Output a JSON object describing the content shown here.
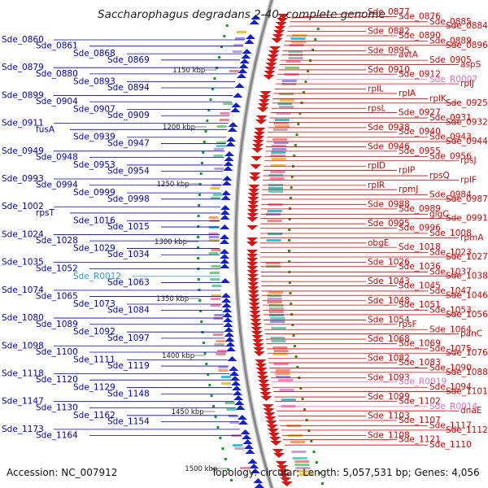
{
  "title": "Saccharophagus degradans 2-40, complete genome",
  "footer": {
    "accession": "Accession: NC_007912",
    "topology": "Topology: circular; Length: 5,057,531 bp; Genes: 4,056"
  },
  "colors": {
    "left": "#0000cc",
    "right": "#e00000",
    "rna_left": "#22a0cc",
    "rna_right": "#e070c0",
    "track": "#888888"
  },
  "kbp_markers": [
    {
      "text": "1150 kbp"
    },
    {
      "text": "1200 kbp"
    },
    {
      "text": "1250 kbp"
    },
    {
      "text": "1300 kbp"
    },
    {
      "text": "1350 kbp"
    },
    {
      "text": "1400 kbp"
    },
    {
      "text": "1450 kbp"
    },
    {
      "text": "1500 kbp"
    }
  ],
  "left_labels": [
    {
      "text": "Sde_0860"
    },
    {
      "text": "Sde_0861"
    },
    {
      "text": "Sde_0868"
    },
    {
      "text": "Sde_0869"
    },
    {
      "text": "Sde_0879"
    },
    {
      "text": "Sde_0880"
    },
    {
      "text": "Sde_0893"
    },
    {
      "text": "Sde_0894"
    },
    {
      "text": "Sde_0899"
    },
    {
      "text": "Sde_0904"
    },
    {
      "text": "Sde_0907"
    },
    {
      "text": "Sde_0909"
    },
    {
      "text": "Sde_0911"
    },
    {
      "text": "fusA"
    },
    {
      "text": "Sde_0939"
    },
    {
      "text": "Sde_0947"
    },
    {
      "text": "Sde_0949"
    },
    {
      "text": "Sde_0948"
    },
    {
      "text": "Sde_0953"
    },
    {
      "text": "Sde_0954"
    },
    {
      "text": "Sde_0993"
    },
    {
      "text": "Sde_0994"
    },
    {
      "text": "Sde_0999"
    },
    {
      "text": "Sde_0998"
    },
    {
      "text": "Sde_1002"
    },
    {
      "text": "rpsT"
    },
    {
      "text": "Sde_1016"
    },
    {
      "text": "Sde_1015"
    },
    {
      "text": "Sde_1024"
    },
    {
      "text": "Sde_1028"
    },
    {
      "text": "Sde_1029"
    },
    {
      "text": "Sde_1034"
    },
    {
      "text": "Sde_1035"
    },
    {
      "text": "Sde_1052"
    },
    {
      "text": "Sde_R0012",
      "rna": true
    },
    {
      "text": "Sde_1063"
    },
    {
      "text": "Sde_1074"
    },
    {
      "text": "Sde_1065"
    },
    {
      "text": "Sde_1073"
    },
    {
      "text": "Sde_1084"
    },
    {
      "text": "Sde_1080"
    },
    {
      "text": "Sde_1089"
    },
    {
      "text": "Sde_1092"
    },
    {
      "text": "Sde_1097"
    },
    {
      "text": "Sde_1098"
    },
    {
      "text": "Sde_1100"
    },
    {
      "text": "Sde_1111"
    },
    {
      "text": "Sde_1119"
    },
    {
      "text": "Sde_1118"
    },
    {
      "text": "Sde_1120"
    },
    {
      "text": "Sde_1129"
    },
    {
      "text": "Sde_1148"
    },
    {
      "text": "Sde_1147"
    },
    {
      "text": "Sde_1130"
    },
    {
      "text": "Sde_1162"
    },
    {
      "text": "Sde_1154"
    },
    {
      "text": "Sde_1173"
    },
    {
      "text": "Sde_1164"
    }
  ],
  "right_labels": [
    {
      "text": "Sde_0877"
    },
    {
      "text": "Sde_0876"
    },
    {
      "text": "Sde_0885"
    },
    {
      "text": "Sde_0884"
    },
    {
      "text": "Sde_0882"
    },
    {
      "text": "Sde_0890"
    },
    {
      "text": "Sde_0889"
    },
    {
      "text": "Sde_0896"
    },
    {
      "text": "Sde_0895"
    },
    {
      "text": "avtA"
    },
    {
      "text": "Sde_0905"
    },
    {
      "text": "aspS"
    },
    {
      "text": "Sde_0910"
    },
    {
      "text": "Sde_0912"
    },
    {
      "text": "Sde_R0007",
      "rna": true
    },
    {
      "text": "rplJ"
    },
    {
      "text": "rplL"
    },
    {
      "text": "rplA"
    },
    {
      "text": "rplK"
    },
    {
      "text": "Sde_0925"
    },
    {
      "text": "rpsL"
    },
    {
      "text": "Sde_0927"
    },
    {
      "text": "Sde_0931"
    },
    {
      "text": "Sde_0932"
    },
    {
      "text": "Sde_0938"
    },
    {
      "text": "Sde_0940"
    },
    {
      "text": "Sde_0943"
    },
    {
      "text": "Sde_0944"
    },
    {
      "text": "Sde_0946"
    },
    {
      "text": "Sde_0955"
    },
    {
      "text": "Sde_0956"
    },
    {
      "text": "rpsJ"
    },
    {
      "text": "rplD"
    },
    {
      "text": "rplP"
    },
    {
      "text": "rpsQ"
    },
    {
      "text": "rplF"
    },
    {
      "text": "rplR"
    },
    {
      "text": "rpmJ"
    },
    {
      "text": "Sde_0984"
    },
    {
      "text": "Sde_0987"
    },
    {
      "text": "Sde_0988"
    },
    {
      "text": "Sde_0989"
    },
    {
      "text": "glgC"
    },
    {
      "text": "Sde_0991"
    },
    {
      "text": "Sde_0995"
    },
    {
      "text": "Sde_0996"
    },
    {
      "text": "Sde_1008"
    },
    {
      "text": "rpmA"
    },
    {
      "text": "obgE"
    },
    {
      "text": "Sde_1018"
    },
    {
      "text": "Sde_1023"
    },
    {
      "text": "Sde_1027"
    },
    {
      "text": "Sde_1026"
    },
    {
      "text": "Sde_1036"
    },
    {
      "text": "Sde_1037"
    },
    {
      "text": "Sde_1038"
    },
    {
      "text": "Sde_1043"
    },
    {
      "text": "Sde_1045"
    },
    {
      "text": "Sde_1047"
    },
    {
      "text": "Sde_1046"
    },
    {
      "text": "Sde_1048"
    },
    {
      "text": "Sde_1051"
    },
    {
      "text": "Sde_1053"
    },
    {
      "text": "Sde_1056"
    },
    {
      "text": "Sde_1054"
    },
    {
      "text": "rpsF"
    },
    {
      "text": "Sde_1064"
    },
    {
      "text": "panC"
    },
    {
      "text": "Sde_1068"
    },
    {
      "text": "Sde_1069"
    },
    {
      "text": "Sde_1075"
    },
    {
      "text": "Sde_1076"
    },
    {
      "text": "Sde_1082"
    },
    {
      "text": "Sde_1083"
    },
    {
      "text": "Sde_1090"
    },
    {
      "text": "Sde_1088"
    },
    {
      "text": "Sde_1093"
    },
    {
      "text": "Sde_R0019",
      "rna": true
    },
    {
      "text": "Sde_1094"
    },
    {
      "text": "Sde_1101"
    },
    {
      "text": "Sde_1099"
    },
    {
      "text": "Sde_1102"
    },
    {
      "text": "Sde_R0014",
      "rna": true
    },
    {
      "text": "dnaE"
    },
    {
      "text": "Sde_1103"
    },
    {
      "text": "Sde_1107"
    },
    {
      "text": "Sde_1117"
    },
    {
      "text": "Sde_1112"
    },
    {
      "text": "Sde_1108"
    },
    {
      "text": "Sde_1121"
    },
    {
      "text": "Sde_1110"
    }
  ]
}
